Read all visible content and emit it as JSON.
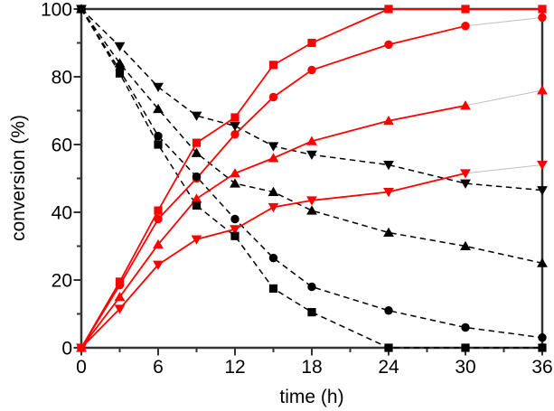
{
  "chart_data": {
    "type": "line",
    "title": "",
    "xlabel": "time (h)",
    "ylabel": "conversion (%)",
    "xlim": [
      0,
      36
    ],
    "ylim": [
      0,
      100
    ],
    "grid": false,
    "legend": "none",
    "x_ticks_major": [
      0,
      6,
      12,
      18,
      24,
      30,
      36
    ],
    "x_ticks_minor": [
      3,
      9,
      15,
      21,
      27,
      33
    ],
    "y_ticks_major": [
      0,
      20,
      40,
      60,
      80,
      100
    ],
    "y_ticks_minor": [
      10,
      30,
      50,
      70,
      90
    ],
    "x": [
      0,
      3,
      6,
      9,
      12,
      15,
      18,
      24,
      30,
      36
    ],
    "series": [
      {
        "name": "black-square-decreasing",
        "color": "#000000",
        "marker": "square",
        "line": "dashed",
        "final_segment": "normal",
        "values": [
          100,
          81,
          60,
          42,
          33,
          17.5,
          10.5,
          0,
          0,
          0
        ]
      },
      {
        "name": "black-circle-decreasing",
        "color": "#000000",
        "marker": "circle",
        "line": "dashed",
        "final_segment": "normal",
        "values": [
          100,
          82,
          62.5,
          50.5,
          38,
          26.5,
          18,
          11,
          6,
          3
        ]
      },
      {
        "name": "black-triangle-up-decreasing",
        "color": "#000000",
        "marker": "triangle-up",
        "line": "dashed",
        "final_segment": "normal",
        "values": [
          100,
          84,
          70.5,
          57.5,
          48.5,
          46,
          40.5,
          34,
          30,
          25
        ]
      },
      {
        "name": "black-triangle-down-decreasing",
        "color": "#000000",
        "marker": "triangle-down",
        "line": "dashed",
        "final_segment": "normal",
        "values": [
          100,
          89,
          77,
          68.5,
          65.5,
          59.5,
          57,
          54,
          48.5,
          46.5
        ]
      },
      {
        "name": "red-square-increasing",
        "color": "#ff0000",
        "marker": "square",
        "line": "solid",
        "final_segment": "normal",
        "values": [
          0,
          19.5,
          40.5,
          60.5,
          68,
          83.5,
          90,
          100,
          100,
          100
        ]
      },
      {
        "name": "red-circle-increasing",
        "color": "#ff0000",
        "marker": "circle",
        "line": "solid",
        "final_segment": "thin",
        "values": [
          0,
          18.5,
          38,
          50,
          63,
          74,
          82,
          89.5,
          95,
          97.5
        ]
      },
      {
        "name": "red-triangle-up-increasing",
        "color": "#ff0000",
        "marker": "triangle-up",
        "line": "solid",
        "final_segment": "thin",
        "values": [
          0,
          15,
          30.5,
          44,
          51.5,
          56,
          61,
          67,
          71.5,
          76
        ]
      },
      {
        "name": "red-triangle-down-increasing",
        "color": "#ff0000",
        "marker": "triangle-down",
        "line": "solid",
        "final_segment": "thin",
        "values": [
          0,
          11.5,
          24.5,
          32,
          35,
          41.5,
          43.5,
          46,
          51.5,
          54
        ]
      }
    ],
    "colors": {
      "increasing_series": "#ff0000",
      "decreasing_series": "#000000",
      "frame": "#333333",
      "thin_final_segment": "#c0c0c0"
    }
  }
}
